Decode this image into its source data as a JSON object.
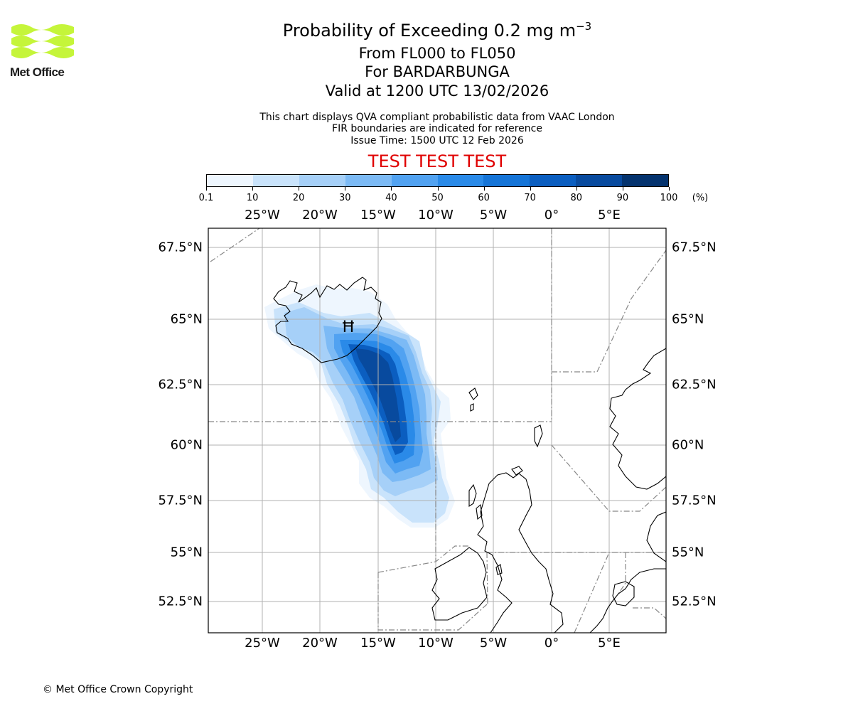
{
  "logo": {
    "text": "Met Office",
    "color": "#c5f53a"
  },
  "title": {
    "main": "Probability of Exceeding 0.2 mg m",
    "superscript": "−3",
    "level": "From FL000 to FL050",
    "volcano": "For BARDARBUNGA",
    "valid": "Valid at 1200 UTC 13/02/2026"
  },
  "subtitle": {
    "line1": "This chart displays QVA compliant probabilistic data from VAAC London",
    "line2": "FIR boundaries are indicated for reference",
    "line3": "Issue Time: 1500 UTC 12 Feb 2026"
  },
  "test_banner": {
    "text": "TEST TEST TEST",
    "color": "#e00000"
  },
  "colorbar": {
    "ticks": [
      "0.1",
      "10",
      "20",
      "30",
      "40",
      "50",
      "60",
      "70",
      "80",
      "90",
      "100"
    ],
    "unit": "(%)",
    "colors": [
      "#eef6fe",
      "#c9e3fb",
      "#a6d0f8",
      "#7cbaf5",
      "#51a2f1",
      "#2a8ae8",
      "#1574d7",
      "#0b5ec0",
      "#084a9e",
      "#04336e"
    ]
  },
  "map": {
    "lon_labels": [
      "25°W",
      "20°W",
      "15°W",
      "10°W",
      "5°W",
      "0°",
      "5°E"
    ],
    "lat_labels": [
      "67.5°N",
      "65°N",
      "62.5°N",
      "60°N",
      "57.5°N",
      "55°N",
      "52.5°N"
    ],
    "volcano_symbol": "Ħ"
  },
  "footer": {
    "copyright": "© Met Office Crown Copyright"
  }
}
